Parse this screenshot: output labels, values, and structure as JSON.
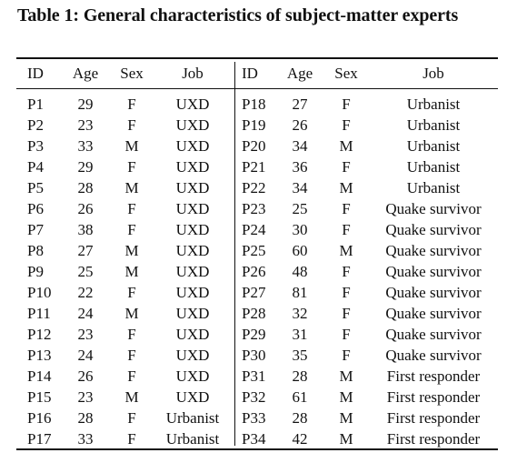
{
  "caption": "Table 1: General characteristics of subject-matter experts",
  "headers": [
    "ID",
    "Age",
    "Sex",
    "Job",
    "ID",
    "Age",
    "Sex",
    "Job"
  ],
  "rows": [
    [
      "P1",
      "29",
      "F",
      "UXD",
      "P18",
      "27",
      "F",
      "Urbanist"
    ],
    [
      "P2",
      "23",
      "F",
      "UXD",
      "P19",
      "26",
      "F",
      "Urbanist"
    ],
    [
      "P3",
      "33",
      "M",
      "UXD",
      "P20",
      "34",
      "M",
      "Urbanist"
    ],
    [
      "P4",
      "29",
      "F",
      "UXD",
      "P21",
      "36",
      "F",
      "Urbanist"
    ],
    [
      "P5",
      "28",
      "M",
      "UXD",
      "P22",
      "34",
      "M",
      "Urbanist"
    ],
    [
      "P6",
      "26",
      "F",
      "UXD",
      "P23",
      "25",
      "F",
      "Quake survivor"
    ],
    [
      "P7",
      "38",
      "F",
      "UXD",
      "P24",
      "30",
      "F",
      "Quake survivor"
    ],
    [
      "P8",
      "27",
      "M",
      "UXD",
      "P25",
      "60",
      "M",
      "Quake survivor"
    ],
    [
      "P9",
      "25",
      "M",
      "UXD",
      "P26",
      "48",
      "F",
      "Quake survivor"
    ],
    [
      "P10",
      "22",
      "F",
      "UXD",
      "P27",
      "81",
      "F",
      "Quake survivor"
    ],
    [
      "P11",
      "24",
      "M",
      "UXD",
      "P28",
      "32",
      "F",
      "Quake survivor"
    ],
    [
      "P12",
      "23",
      "F",
      "UXD",
      "P29",
      "31",
      "F",
      "Quake survivor"
    ],
    [
      "P13",
      "24",
      "F",
      "UXD",
      "P30",
      "35",
      "F",
      "Quake survivor"
    ],
    [
      "P14",
      "26",
      "F",
      "UXD",
      "P31",
      "28",
      "M",
      "First responder"
    ],
    [
      "P15",
      "23",
      "M",
      "UXD",
      "P32",
      "61",
      "M",
      "First responder"
    ],
    [
      "P16",
      "28",
      "F",
      "Urbanist",
      "P33",
      "28",
      "M",
      "First responder"
    ],
    [
      "P17",
      "33",
      "F",
      "Urbanist",
      "P34",
      "42",
      "M",
      "First responder"
    ]
  ]
}
